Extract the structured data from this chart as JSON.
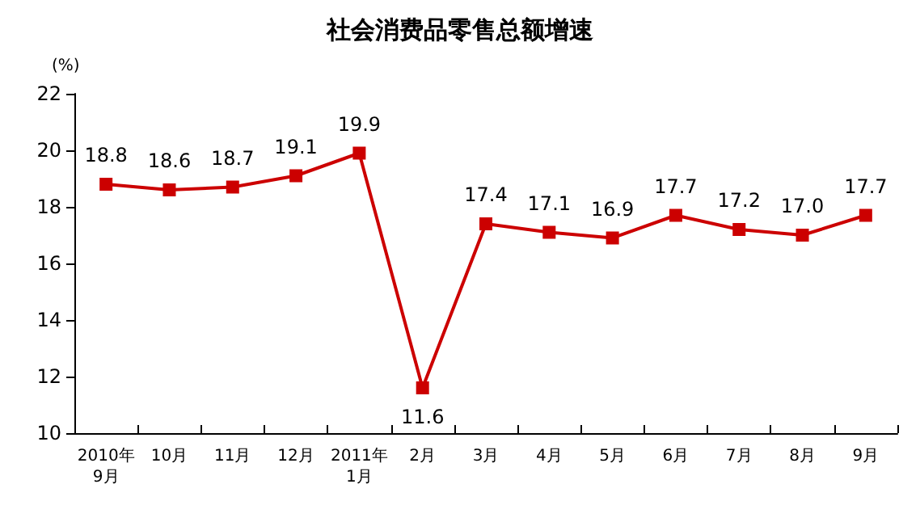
{
  "chart_data": {
    "type": "line",
    "title": "社会消费品零售总额增速",
    "ylabel": "(%)",
    "categories": [
      "2010年\n9月",
      "10月",
      "11月",
      "12月",
      "2011年\n1月",
      "2月",
      "3月",
      "4月",
      "5月",
      "6月",
      "7月",
      "8月",
      "9月"
    ],
    "values": [
      18.8,
      18.6,
      18.7,
      19.1,
      19.9,
      11.6,
      17.4,
      17.1,
      16.9,
      17.7,
      17.2,
      17.0,
      17.7
    ],
    "value_labels": [
      "18.8",
      "18.6",
      "18.7",
      "19.1",
      "19.9",
      "11.6",
      "17.4",
      "17.1",
      "16.9",
      "17.7",
      "17.2",
      "17.0",
      "17.7"
    ],
    "color": "#cc0000",
    "marker": "square",
    "line_style": "solid",
    "ylim": [
      10,
      22
    ],
    "yticks": [
      10,
      12,
      14,
      16,
      18,
      20,
      22
    ]
  }
}
